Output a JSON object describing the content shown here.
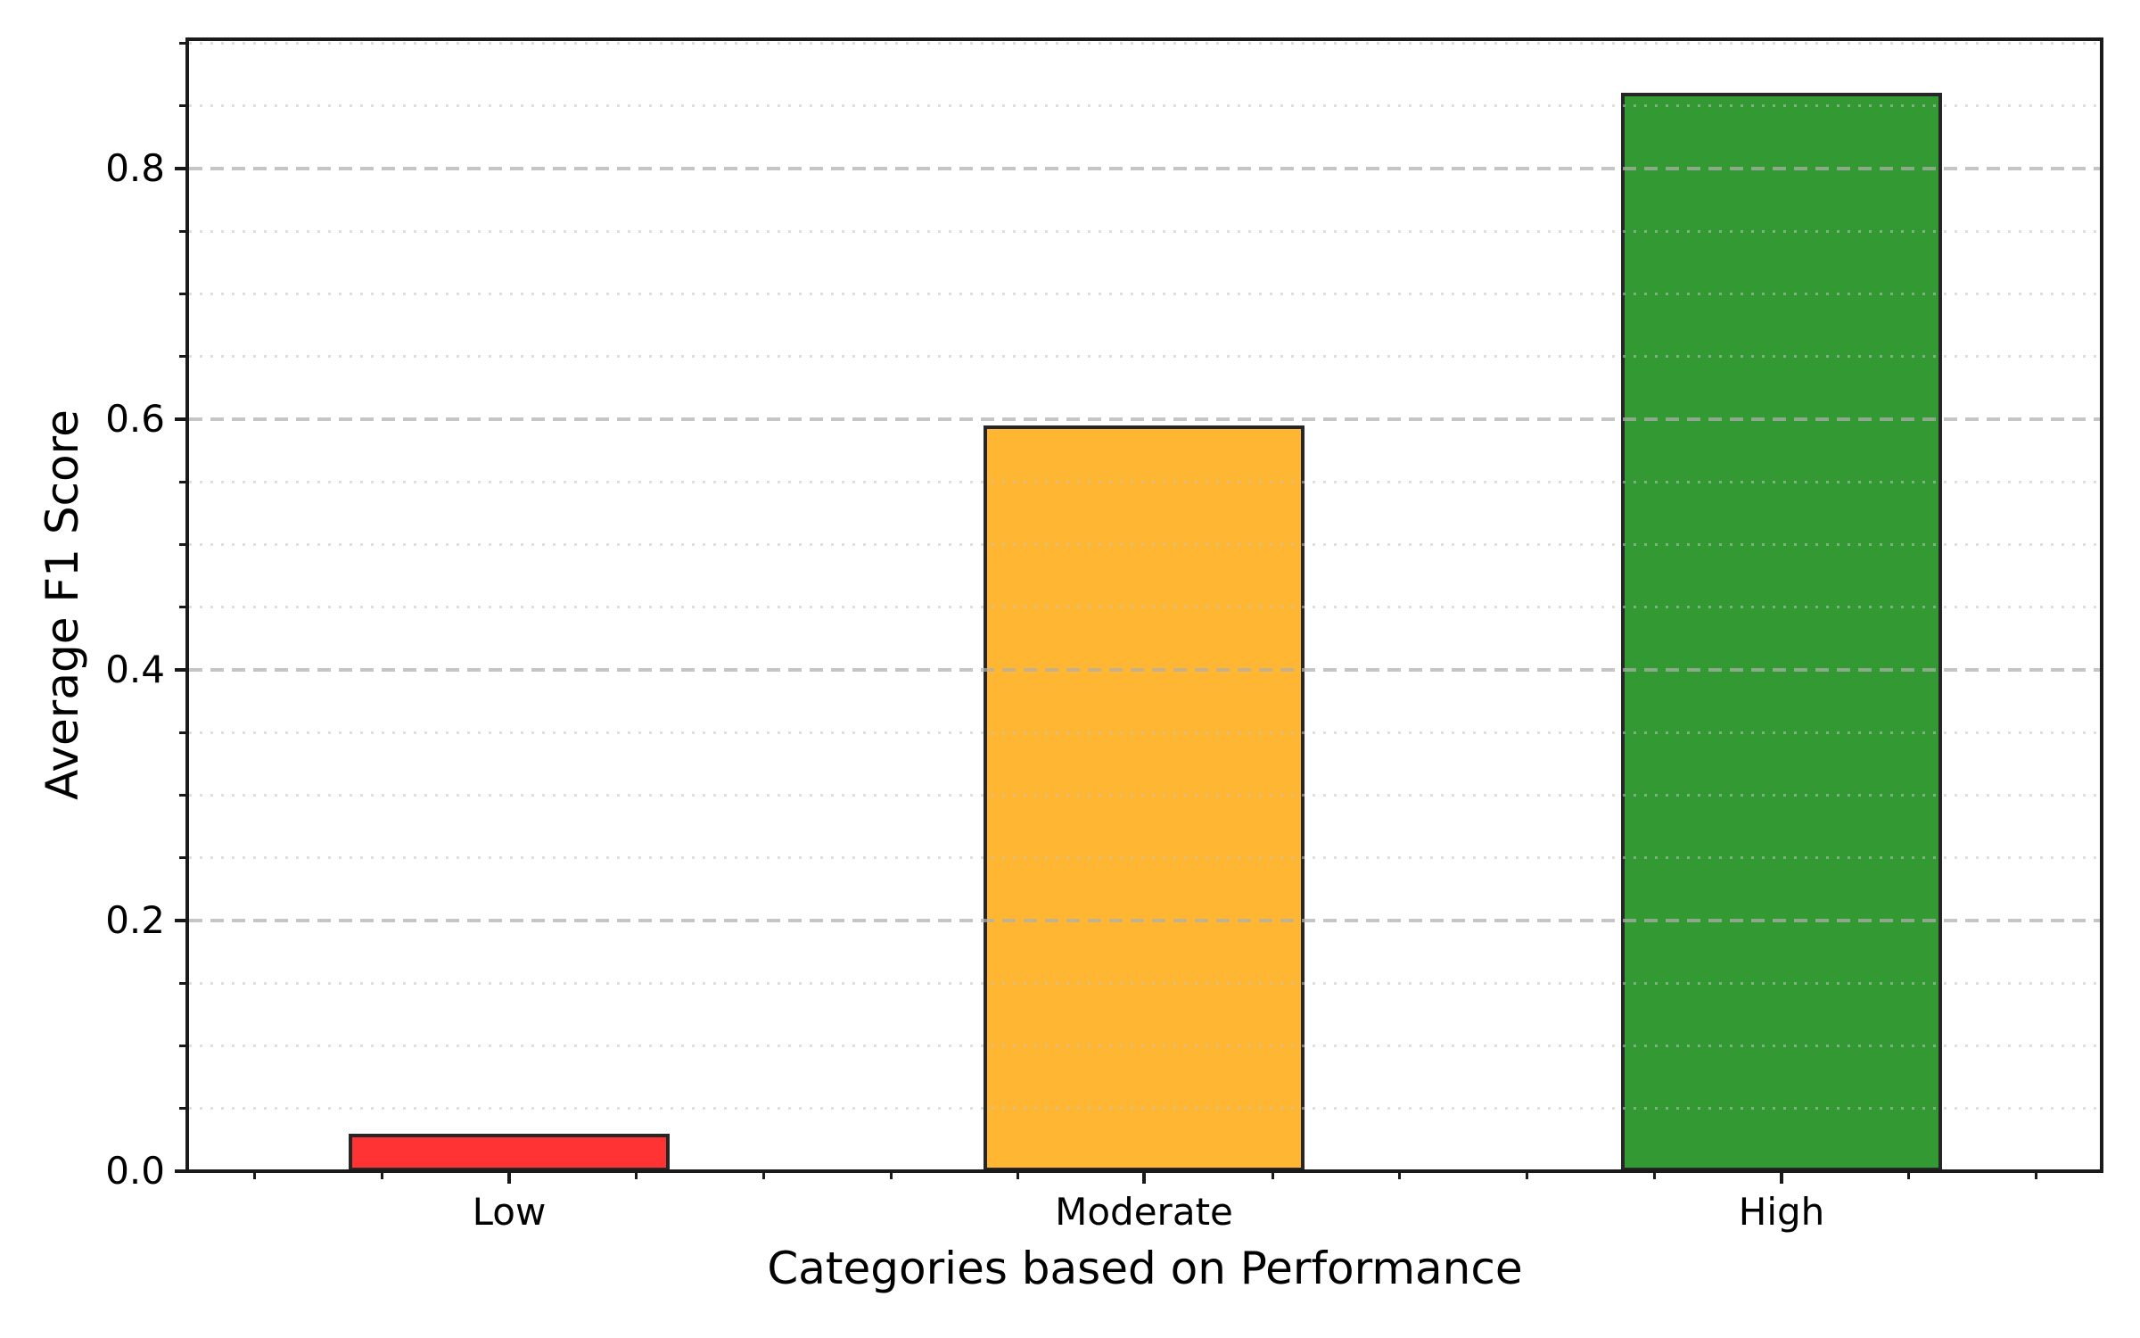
{
  "chart_data": {
    "type": "bar",
    "title": "",
    "xlabel": "Categories based on Performance",
    "ylabel": "Average F1 Score",
    "categories": [
      "Low",
      "Moderate",
      "High"
    ],
    "values": [
      0.03,
      0.595,
      0.86
    ],
    "series": [
      {
        "name": "Average F1 Score",
        "values": [
          0.03,
          0.595,
          0.86
        ]
      }
    ],
    "bar_colors": [
      "#ff3333",
      "#ffb733",
      "#339933"
    ],
    "bar_color_names": [
      "red",
      "orange",
      "green"
    ],
    "bar_edge_color": "#262626",
    "ylim": [
      0,
      0.903
    ],
    "yticks": [
      0.0,
      0.2,
      0.4,
      0.6,
      0.8
    ],
    "ytick_labels": [
      "0.0",
      "0.2",
      "0.4",
      "0.6",
      "0.8"
    ],
    "ytick_minor_step": 0.05,
    "xtick_minor_step": 0.2,
    "grid": {
      "major": {
        "style": "dashed",
        "color": "#c6c6c6",
        "orientation": "horizontal"
      },
      "minor": {
        "style": "dotted",
        "color": "#dedede",
        "orientation": "horizontal"
      },
      "drawn_above_bars": true
    },
    "legend": "none",
    "background_color": "#ffffff",
    "spine_color": "#1a1a1a"
  }
}
